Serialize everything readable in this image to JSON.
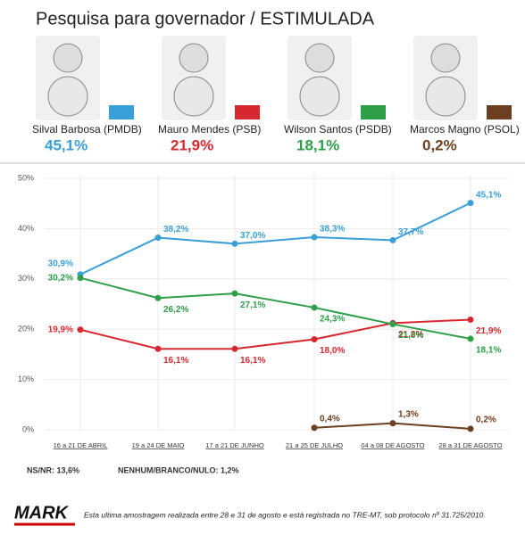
{
  "chart_data": {
    "type": "line",
    "title": "Pesquisa para governador / ESTIMULADA",
    "categories": [
      "16 a 21 DE ABRIL",
      "19 a 24 DE MAIO",
      "17 a 21 DE JUNHO",
      "21 a 25 DE JULHO",
      "04 a 08 DE AGOSTO",
      "28 a 31 DE AGOSTO"
    ],
    "series": [
      {
        "name": "Silval Barbosa (PMDB)",
        "color": "#3a9fd6",
        "values": [
          30.9,
          38.2,
          37.0,
          38.3,
          37.7,
          45.1
        ],
        "value_labels": [
          "30,9%",
          "38,2%",
          "37,0%",
          "38,3%",
          "37,7%",
          "45,1%"
        ]
      },
      {
        "name": "Mauro Mendes (PSB)",
        "color": "#d7282f",
        "values": [
          19.9,
          16.1,
          16.1,
          18.0,
          21.2,
          21.9
        ],
        "value_labels": [
          "19,9%",
          "16,1%",
          "16,1%",
          "18,0%",
          "21,2%",
          "21,9%"
        ]
      },
      {
        "name": "Wilson Santos (PSDB)",
        "color": "#2e9e48",
        "values": [
          30.2,
          26.2,
          27.1,
          24.3,
          21.0,
          18.1
        ],
        "value_labels": [
          "30,2%",
          "26,2%",
          "27,1%",
          "24,3%",
          "21,0%",
          "18,1%"
        ]
      },
      {
        "name": "Marcos Magno (PSOL)",
        "color": "#6b3f1f",
        "values": [
          null,
          null,
          null,
          0.4,
          1.3,
          0.2
        ],
        "value_labels": [
          null,
          null,
          null,
          "0,4%",
          "1,3%",
          "0,2%"
        ]
      }
    ],
    "ylim": [
      0,
      50
    ],
    "yticks": [
      {
        "value": 0,
        "label": "0%"
      },
      {
        "value": 10,
        "label": "10%"
      },
      {
        "value": 20,
        "label": "20%"
      },
      {
        "value": 30,
        "label": "30%"
      },
      {
        "value": 40,
        "label": "40%"
      },
      {
        "value": 50,
        "label": "50%"
      }
    ],
    "grid": true,
    "notes": [
      "NS/NR: 13,6%",
      "NENHUM/BRANCO/NULO: 1,2%"
    ],
    "brand": "MARK",
    "footnote": "Esta ultima amostragem realizada entre 28 e 31 de agosto e está registrada no TRE-MT, sob protocolo  nº 31.725/2010."
  }
}
